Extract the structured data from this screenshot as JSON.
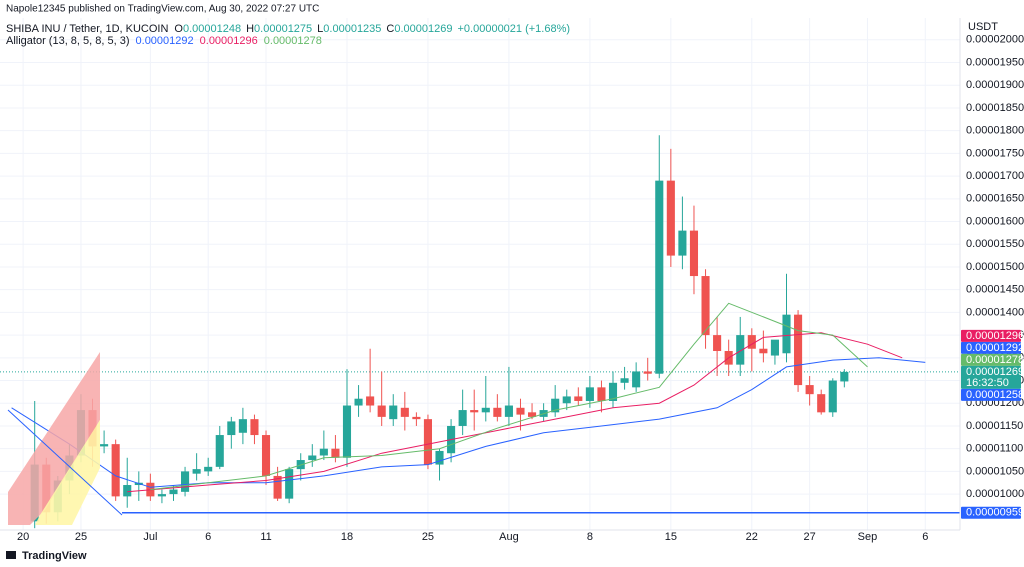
{
  "chart_data": {
    "type": "candlestick",
    "attribution": "Napole12345 published on TradingView.com, Aug 30, 2022 07:27 UTC",
    "title": "SHIBA INU / Tether, 1D, KUCOIN",
    "ohlc_letters": [
      "O",
      "H",
      "L",
      "C"
    ],
    "change_label": "+0.00000021 (+1.68%)",
    "currency": "USDT",
    "brand": "TradingView",
    "countdown": "16:32:50",
    "up_color": "#26a69a",
    "down_color": "#ef5350",
    "grid": true,
    "xlim": [
      "2022-06-18",
      "2022-09-09"
    ],
    "xticks": [
      {
        "value": "2022-06-20",
        "label": "20"
      },
      {
        "value": "2022-06-25",
        "label": "25"
      },
      {
        "value": "2022-07-01",
        "label": "Jul"
      },
      {
        "value": "2022-07-06",
        "label": "6"
      },
      {
        "value": "2022-07-11",
        "label": "11"
      },
      {
        "value": "2022-07-18",
        "label": "18"
      },
      {
        "value": "2022-07-25",
        "label": "25"
      },
      {
        "value": "2022-08-01",
        "label": "Aug"
      },
      {
        "value": "2022-08-08",
        "label": "8"
      },
      {
        "value": "2022-08-15",
        "label": "15"
      },
      {
        "value": "2022-08-22",
        "label": "22"
      },
      {
        "value": "2022-08-27",
        "label": "27"
      },
      {
        "value": "2022-09-01",
        "label": "Sep"
      },
      {
        "value": "2022-09-06",
        "label": "6"
      }
    ],
    "ylim": [
      9.21e-06,
      2.048e-05
    ],
    "yticks": [
      {
        "value": 1e-05,
        "label": "0.00001000"
      },
      {
        "value": 1.05e-05,
        "label": "0.00001050"
      },
      {
        "value": 1.1e-05,
        "label": "0.00001100"
      },
      {
        "value": 1.15e-05,
        "label": "0.00001150"
      },
      {
        "value": 1.2e-05,
        "label": "0.00001200"
      },
      {
        "value": 1.25e-05,
        "label": "0.00001250"
      },
      {
        "value": 1.3e-05,
        "label": "0.00001300"
      },
      {
        "value": 1.35e-05,
        "label": "0.00001350"
      },
      {
        "value": 1.4e-05,
        "label": "0.00001400"
      },
      {
        "value": 1.45e-05,
        "label": "0.00001450"
      },
      {
        "value": 1.5e-05,
        "label": "0.00001500"
      },
      {
        "value": 1.55e-05,
        "label": "0.00001550"
      },
      {
        "value": 1.6e-05,
        "label": "0.00001600"
      },
      {
        "value": 1.65e-05,
        "label": "0.00001650"
      },
      {
        "value": 1.7e-05,
        "label": "0.00001700"
      },
      {
        "value": 1.75e-05,
        "label": "0.00001750"
      },
      {
        "value": 1.8e-05,
        "label": "0.00001800"
      },
      {
        "value": 1.85e-05,
        "label": "0.00001850"
      },
      {
        "value": 1.9e-05,
        "label": "0.00001900"
      },
      {
        "value": 1.95e-05,
        "label": "0.00001950"
      },
      {
        "value": 2e-05,
        "label": "0.00002000"
      }
    ],
    "x": [
      "2022-06-21",
      "2022-06-22",
      "2022-06-23",
      "2022-06-24",
      "2022-06-25",
      "2022-06-26",
      "2022-06-27",
      "2022-06-28",
      "2022-06-29",
      "2022-06-30",
      "2022-07-01",
      "2022-07-02",
      "2022-07-03",
      "2022-07-04",
      "2022-07-05",
      "2022-07-06",
      "2022-07-07",
      "2022-07-08",
      "2022-07-09",
      "2022-07-10",
      "2022-07-11",
      "2022-07-12",
      "2022-07-13",
      "2022-07-14",
      "2022-07-15",
      "2022-07-16",
      "2022-07-17",
      "2022-07-18",
      "2022-07-19",
      "2022-07-20",
      "2022-07-21",
      "2022-07-22",
      "2022-07-23",
      "2022-07-24",
      "2022-07-25",
      "2022-07-26",
      "2022-07-27",
      "2022-07-28",
      "2022-07-29",
      "2022-07-30",
      "2022-07-31",
      "2022-08-01",
      "2022-08-02",
      "2022-08-03",
      "2022-08-04",
      "2022-08-05",
      "2022-08-06",
      "2022-08-07",
      "2022-08-08",
      "2022-08-09",
      "2022-08-10",
      "2022-08-11",
      "2022-08-12",
      "2022-08-13",
      "2022-08-14",
      "2022-08-15",
      "2022-08-16",
      "2022-08-17",
      "2022-08-18",
      "2022-08-19",
      "2022-08-20",
      "2022-08-21",
      "2022-08-22",
      "2022-08-23",
      "2022-08-24",
      "2022-08-25",
      "2022-08-26",
      "2022-08-27",
      "2022-08-28",
      "2022-08-29",
      "2022-08-30"
    ],
    "open": [
      9.4e-06,
      1.065e-05,
      9.6e-06,
      1.03e-05,
      1.085e-05,
      1.185e-05,
      1.105e-05,
      1.11e-05,
      9.95e-06,
      1.02e-05,
      1.025e-05,
      9.95e-06,
      1e-05,
      1.005e-05,
      1.045e-05,
      1.05e-05,
      1.06e-05,
      1.13e-05,
      1.135e-05,
      1.165e-05,
      1.13e-05,
      1.04e-05,
      9.9e-06,
      1.055e-05,
      1.075e-05,
      1.085e-05,
      1.1e-05,
      1.08e-05,
      1.195e-05,
      1.215e-05,
      1.195e-05,
      1.165e-05,
      1.19e-05,
      1.17e-05,
      1.165e-05,
      1.065e-05,
      1.09e-05,
      1.15e-05,
      1.185e-05,
      1.18e-05,
      1.19e-05,
      1.17e-05,
      1.19e-05,
      1.18e-05,
      1.17e-05,
      1.18e-05,
      1.2e-05,
      1.215e-05,
      1.205e-05,
      1.235e-05,
      1.205e-05,
      1.245e-05,
      1.235e-05,
      1.27e-05,
      1.265e-05,
      1.69e-05,
      1.525e-05,
      1.58e-05,
      1.48e-05,
      1.35e-05,
      1.315e-05,
      1.285e-05,
      1.35e-05,
      1.32e-05,
      1.305e-05,
      1.31e-05,
      1.395e-05,
      1.24e-05,
      1.22e-05,
      1.18e-05,
      1.248e-05
    ],
    "high": [
      1.205e-05,
      1.08e-05,
      1.04e-05,
      1.11e-05,
      1.22e-05,
      1.21e-05,
      1.14e-05,
      1.12e-05,
      1.08e-05,
      1.05e-05,
      1.045e-05,
      1.01e-05,
      1.02e-05,
      1.06e-05,
      1.09e-05,
      1.08e-05,
      1.15e-05,
      1.17e-05,
      1.19e-05,
      1.175e-05,
      1.14e-05,
      1.06e-05,
      1.06e-05,
      1.09e-05,
      1.11e-05,
      1.14e-05,
      1.13e-05,
      1.275e-05,
      1.24e-05,
      1.32e-05,
      1.27e-05,
      1.22e-05,
      1.225e-05,
      1.18e-05,
      1.175e-05,
      1.1e-05,
      1.165e-05,
      1.23e-05,
      1.23e-05,
      1.26e-05,
      1.22e-05,
      1.28e-05,
      1.21e-05,
      1.2e-05,
      1.2e-05,
      1.24e-05,
      1.23e-05,
      1.235e-05,
      1.26e-05,
      1.25e-05,
      1.27e-05,
      1.28e-05,
      1.29e-05,
      1.3e-05,
      1.79e-05,
      1.76e-05,
      1.655e-05,
      1.635e-05,
      1.495e-05,
      1.39e-05,
      1.34e-05,
      1.39e-05,
      1.365e-05,
      1.36e-05,
      1.335e-05,
      1.485e-05,
      1.405e-05,
      1.26e-05,
      1.23e-05,
      1.255e-05,
      1.275e-05
    ],
    "low": [
      9.25e-06,
      9.35e-06,
      9.4e-06,
      1e-05,
      1.07e-05,
      1.06e-05,
      1.09e-05,
      9.85e-06,
      9.7e-06,
      9.85e-06,
      9.85e-06,
      9.8e-06,
      9.85e-06,
      9.95e-06,
      1.03e-05,
      1.04e-05,
      1.055e-05,
      1.1e-05,
      1.11e-05,
      1.11e-05,
      1.02e-05,
      9.85e-06,
      9.8e-06,
      1.03e-05,
      1.06e-05,
      1.075e-05,
      1.07e-05,
      1.06e-05,
      1.17e-05,
      1.18e-05,
      1.15e-05,
      1.15e-05,
      1.14e-05,
      1.15e-05,
      1.055e-05,
      1.03e-05,
      1.07e-05,
      1.13e-05,
      1.14e-05,
      1.16e-05,
      1.16e-05,
      1.15e-05,
      1.14e-05,
      1.165e-05,
      1.16e-05,
      1.17e-05,
      1.185e-05,
      1.195e-05,
      1.19e-05,
      1.18e-05,
      1.19e-05,
      1.23e-05,
      1.225e-05,
      1.25e-05,
      1.255e-05,
      1.5e-05,
      1.495e-05,
      1.44e-05,
      1.32e-05,
      1.26e-05,
      1.26e-05,
      1.26e-05,
      1.27e-05,
      1.29e-05,
      1.285e-05,
      1.29e-05,
      1.225e-05,
      1.195e-05,
      1.175e-05,
      1.17e-05,
      1.235e-05
    ],
    "close": [
      1.065e-05,
      9.6e-06,
      1.03e-05,
      1.085e-05,
      1.185e-05,
      1.105e-05,
      1.11e-05,
      9.95e-06,
      1.02e-05,
      1.025e-05,
      9.95e-06,
      1e-05,
      1.01e-05,
      1.05e-05,
      1.055e-05,
      1.06e-05,
      1.13e-05,
      1.16e-05,
      1.165e-05,
      1.13e-05,
      1.04e-05,
      9.9e-06,
      1.055e-05,
      1.075e-05,
      1.085e-05,
      1.1e-05,
      1.08e-05,
      1.195e-05,
      1.21e-05,
      1.195e-05,
      1.17e-05,
      1.195e-05,
      1.17e-05,
      1.165e-05,
      1.065e-05,
      1.095e-05,
      1.15e-05,
      1.185e-05,
      1.18e-05,
      1.19e-05,
      1.17e-05,
      1.195e-05,
      1.175e-05,
      1.17e-05,
      1.185e-05,
      1.21e-05,
      1.215e-05,
      1.205e-05,
      1.235e-05,
      1.205e-05,
      1.245e-05,
      1.255e-05,
      1.27e-05,
      1.265e-05,
      1.69e-05,
      1.525e-05,
      1.58e-05,
      1.48e-05,
      1.35e-05,
      1.315e-05,
      1.285e-05,
      1.35e-05,
      1.32e-05,
      1.31e-05,
      1.34e-05,
      1.395e-05,
      1.24e-05,
      1.22e-05,
      1.18e-05,
      1.25e-05,
      1.269e-05
    ],
    "indicator": {
      "label": "Alligator (13, 8, 5, 8, 5, 3)",
      "series": [
        {
          "color": "#2962ff",
          "current": 1.292e-05,
          "x": [
            "2022-06-19",
            "2022-06-24",
            "2022-06-28",
            "2022-07-01",
            "2022-07-06",
            "2022-07-11",
            "2022-07-16",
            "2022-07-21",
            "2022-07-25",
            "2022-07-30",
            "2022-08-04",
            "2022-08-09",
            "2022-08-14",
            "2022-08-19",
            "2022-08-22",
            "2022-08-25",
            "2022-08-29",
            "2022-09-02",
            "2022-09-06"
          ],
          "values": [
            1.19e-05,
            1.11e-05,
            1.04e-05,
            1.015e-05,
            1.025e-05,
            1.025e-05,
            1.04e-05,
            1.06e-05,
            1.065e-05,
            1.105e-05,
            1.135e-05,
            1.15e-05,
            1.165e-05,
            1.19e-05,
            1.23e-05,
            1.28e-05,
            1.295e-05,
            1.3e-05,
            1.29e-05
          ]
        },
        {
          "color": "#e91e63",
          "current": 1.296e-05,
          "x": [
            "2022-06-29",
            "2022-07-06",
            "2022-07-11",
            "2022-07-16",
            "2022-07-21",
            "2022-07-26",
            "2022-07-31",
            "2022-08-05",
            "2022-08-10",
            "2022-08-14",
            "2022-08-17",
            "2022-08-20",
            "2022-08-23",
            "2022-08-28",
            "2022-09-01",
            "2022-09-04"
          ],
          "values": [
            1.005e-05,
            1.02e-05,
            1.03e-05,
            1.05e-05,
            1.09e-05,
            1.115e-05,
            1.14e-05,
            1.165e-05,
            1.19e-05,
            1.2e-05,
            1.24e-05,
            1.3e-05,
            1.345e-05,
            1.355e-05,
            1.33e-05,
            1.3e-05
          ]
        },
        {
          "color": "#66bb6a",
          "current": 1.278e-05,
          "x": [
            "2022-07-01",
            "2022-07-06",
            "2022-07-11",
            "2022-07-16",
            "2022-07-21",
            "2022-07-26",
            "2022-07-31",
            "2022-08-05",
            "2022-08-10",
            "2022-08-14",
            "2022-08-17",
            "2022-08-20",
            "2022-08-23",
            "2022-08-26",
            "2022-08-29",
            "2022-09-01"
          ],
          "values": [
            1.01e-05,
            1.025e-05,
            1.04e-05,
            1.08e-05,
            1.085e-05,
            1.1e-05,
            1.145e-05,
            1.185e-05,
            1.21e-05,
            1.235e-05,
            1.33e-05,
            1.42e-05,
            1.39e-05,
            1.36e-05,
            1.35e-05,
            1.28e-05
          ]
        }
      ]
    },
    "price_tags": [
      {
        "value": 1.258e-05,
        "color": "#2962ff"
      }
    ],
    "hline": {
      "value": 9.59e-06,
      "color": "#2962ff"
    }
  }
}
